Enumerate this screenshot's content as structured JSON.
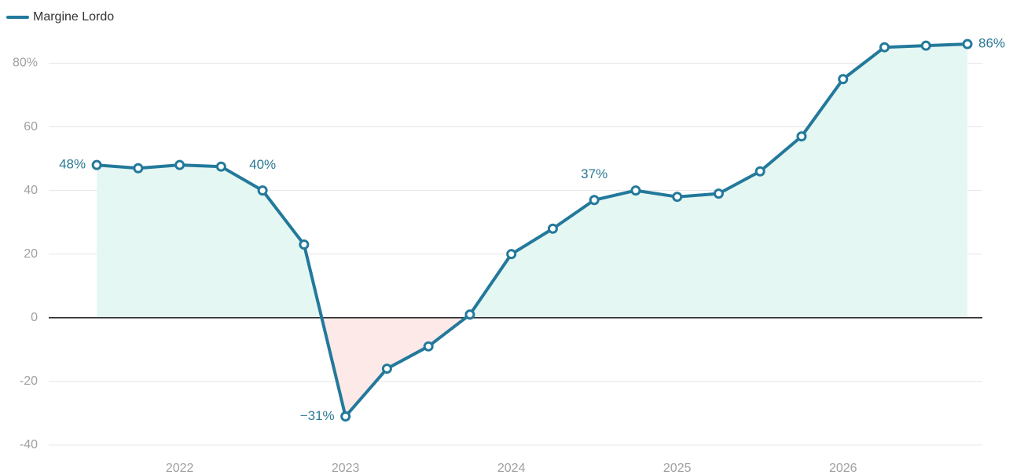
{
  "chart_data": {
    "type": "line",
    "x": [
      2021.5,
      2021.75,
      2022,
      2022.25,
      2022.5,
      2022.75,
      2023,
      2023.25,
      2023.5,
      2023.75,
      2024,
      2024.25,
      2024.5,
      2024.75,
      2025,
      2025.25,
      2025.5,
      2025.75,
      2026,
      2026.25,
      2026.5,
      2026.75
    ],
    "series": [
      {
        "name": "Margine Lordo",
        "color": "#23799b",
        "values": [
          48,
          47,
          48,
          47.5,
          40,
          23,
          -31,
          -16,
          -9,
          1,
          20,
          28,
          37,
          40,
          38,
          39,
          46,
          57,
          75,
          85,
          85.5,
          86
        ],
        "value_labels": [
          "48%",
          null,
          null,
          null,
          "40%",
          null,
          "−31%",
          null,
          null,
          null,
          null,
          null,
          "37%",
          null,
          null,
          null,
          null,
          null,
          null,
          null,
          null,
          "86%"
        ]
      }
    ],
    "xlim": [
      2021.4,
      2026.84
    ],
    "xticks": [
      2022,
      2023,
      2024,
      2025,
      2026
    ],
    "ylim": [
      -43,
      89
    ],
    "yticks": [
      -40,
      -20,
      0,
      20,
      40,
      60,
      {
        "value": 80,
        "label": "80%"
      }
    ],
    "grid": true,
    "legend": "top-left",
    "area_colors": {
      "positive": "#e5f7f3",
      "negative": "#fde9e8"
    }
  }
}
